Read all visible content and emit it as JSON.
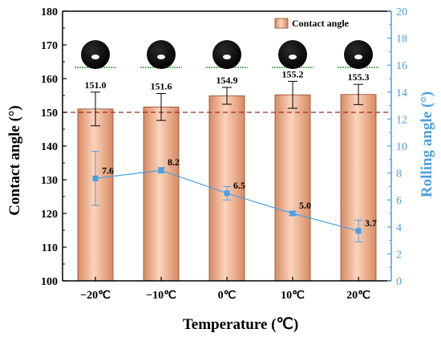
{
  "chart_data": {
    "type": "bar",
    "categories": [
      "−20℃",
      "−10℃",
      "0℃",
      "10℃",
      "20℃"
    ],
    "xlabel": "Temperature (℃)",
    "ylabel": "Contact angle (°)",
    "ylabel_right": "Rolling angle (°)",
    "ylim": [
      100,
      180
    ],
    "yticks": [
      100,
      110,
      120,
      130,
      140,
      150,
      160,
      170,
      180
    ],
    "ylim_right": [
      0,
      20
    ],
    "yticks_right": [
      0,
      2,
      4,
      6,
      8,
      10,
      12,
      14,
      16,
      18,
      20
    ],
    "reference_line": 150,
    "legend": {
      "label": "Contact angle",
      "position": "top-right"
    },
    "series": [
      {
        "name": "Contact angle",
        "kind": "bar",
        "axis": "left",
        "values": [
          151.0,
          151.6,
          154.9,
          155.2,
          155.3
        ],
        "labels": [
          "151.0",
          "151.6",
          "154.9",
          "155.2",
          "155.3"
        ],
        "errors": [
          5.0,
          4.0,
          2.5,
          4.0,
          3.0
        ]
      },
      {
        "kind": "line",
        "axis": "right",
        "values": [
          7.6,
          8.2,
          6.5,
          5.0,
          3.7
        ],
        "labels": [
          "7.6",
          "8.2",
          "6.5",
          "5.0",
          "3.7"
        ],
        "errors": [
          2.0,
          0.2,
          0.5,
          0.15,
          0.8
        ]
      }
    ],
    "colors": {
      "bar": "#f2b290",
      "bar_edge": "#8a4a2a",
      "line": "#4a9fe0",
      "reference": "#a02828",
      "axis_right": "#4a9fe0",
      "droplet": "#000000",
      "droplet_baseline": "#3c9a3c"
    }
  }
}
